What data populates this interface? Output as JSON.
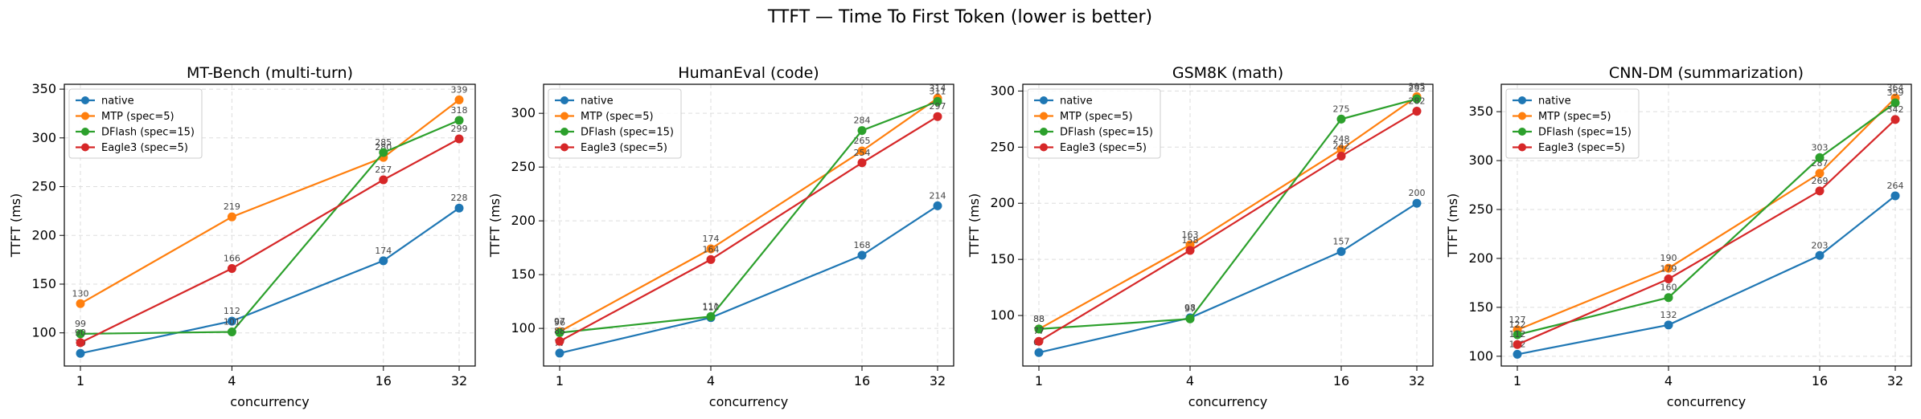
{
  "figure": {
    "suptitle": "TTFT — Time To First Token (lower is better)"
  },
  "chart_data": [
    {
      "type": "line",
      "title": "MT-Bench (multi-turn)",
      "xlabel": "concurrency",
      "ylabel": "TTFT (ms)",
      "x": [
        1,
        4,
        16,
        32
      ],
      "x_scale": "log2",
      "ylim": [
        66,
        355
      ],
      "yticks": [
        100,
        150,
        200,
        250,
        300,
        350
      ],
      "grid": true,
      "legend_position": "top-left",
      "series": [
        {
          "name": "native",
          "values": [
            79,
            112,
            174,
            228
          ]
        },
        {
          "name": "MTP (spec=5)",
          "values": [
            130,
            219,
            280,
            339
          ]
        },
        {
          "name": "DFlash (spec=15)",
          "values": [
            99,
            101,
            285,
            318
          ]
        },
        {
          "name": "Eagle3 (spec=5)",
          "values": [
            90,
            166,
            257,
            299
          ]
        }
      ]
    },
    {
      "type": "line",
      "title": "HumanEval (code)",
      "xlabel": "concurrency",
      "ylabel": "TTFT (ms)",
      "x": [
        1,
        4,
        16,
        32
      ],
      "x_scale": "log2",
      "ylim": [
        65,
        327
      ],
      "yticks": [
        100,
        150,
        200,
        250,
        300
      ],
      "grid": true,
      "legend_position": "top-left",
      "series": [
        {
          "name": "native",
          "values": [
            77,
            110,
            168,
            214
          ]
        },
        {
          "name": "MTP (spec=5)",
          "values": [
            97,
            174,
            265,
            314
          ]
        },
        {
          "name": "DFlash (spec=15)",
          "values": [
            96,
            111,
            284,
            311
          ]
        },
        {
          "name": "Eagle3 (spec=5)",
          "values": [
            88,
            164,
            254,
            297
          ]
        }
      ]
    },
    {
      "type": "line",
      "title": "GSM8K (math)",
      "xlabel": "concurrency",
      "ylabel": "TTFT (ms)",
      "x": [
        1,
        4,
        16,
        32
      ],
      "x_scale": "log2",
      "ylim": [
        55,
        306
      ],
      "yticks": [
        100,
        150,
        200,
        250,
        300
      ],
      "grid": true,
      "legend_position": "top-left",
      "series": [
        {
          "name": "native",
          "values": [
            67,
            98,
            157,
            200
          ]
        },
        {
          "name": "MTP (spec=5)",
          "values": [
            88,
            163,
            248,
            295
          ]
        },
        {
          "name": "DFlash (spec=15)",
          "values": [
            88,
            97,
            275,
            293
          ]
        },
        {
          "name": "Eagle3 (spec=5)",
          "values": [
            77,
            158,
            242,
            282
          ]
        }
      ]
    },
    {
      "type": "line",
      "title": "CNN-DM (summarization)",
      "xlabel": "concurrency",
      "ylabel": "TTFT (ms)",
      "x": [
        1,
        4,
        16,
        32
      ],
      "x_scale": "log2",
      "ylim": [
        90,
        378
      ],
      "yticks": [
        100,
        150,
        200,
        250,
        300,
        350
      ],
      "grid": true,
      "legend_position": "top-left",
      "series": [
        {
          "name": "native",
          "values": [
            102,
            132,
            203,
            264
          ]
        },
        {
          "name": "MTP (spec=5)",
          "values": [
            127,
            190,
            287,
            364
          ]
        },
        {
          "name": "DFlash (spec=15)",
          "values": [
            122,
            160,
            303,
            359
          ]
        },
        {
          "name": "Eagle3 (spec=5)",
          "values": [
            112,
            179,
            269,
            342
          ]
        }
      ]
    }
  ],
  "colors": {
    "native": "#1f77b4",
    "mtp": "#ff7f0e",
    "dflash": "#2ca02c",
    "eagle3": "#d62728",
    "grid": "#dddddd",
    "label": "#444444"
  }
}
